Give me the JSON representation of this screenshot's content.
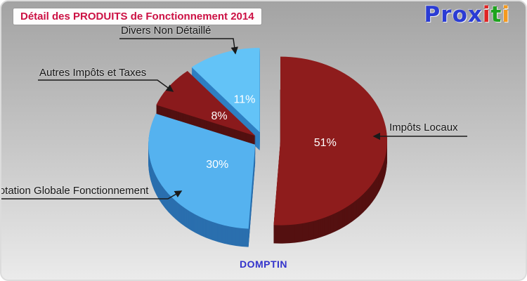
{
  "header": {
    "title": "Détail des PRODUITS de Fonctionnement 2014",
    "title_color": "#cc1144"
  },
  "logo": {
    "text": "Proxiti",
    "letters": [
      {
        "ch": "P",
        "color": "#2a3cd4"
      },
      {
        "ch": "r",
        "color": "#2a3cd4"
      },
      {
        "ch": "o",
        "color": "#2a3cd4"
      },
      {
        "ch": "x",
        "color": "#2a3cd4"
      },
      {
        "ch": "i",
        "color": "#e02424"
      },
      {
        "ch": "t",
        "color": "#1ea31e"
      },
      {
        "ch": "i",
        "color": "#f59a1e"
      }
    ]
  },
  "chart_data": {
    "type": "pie",
    "style": "3d-exploded",
    "title": "Détail des PRODUITS de Fonctionnement 2014",
    "subtitle": "DOMPTIN",
    "unit": "percent",
    "start_angle_deg": 0,
    "direction": "clockwise",
    "legend_position": "callouts",
    "slices": [
      {
        "label": "Impôts Locaux",
        "value_pct": 51,
        "color": "#8e1c1c",
        "side_color": "#541010",
        "label_color": "#ffffff"
      },
      {
        "label": "Dotation Globale Fonctionnement",
        "value_pct": 30,
        "color": "#55b2ef",
        "side_color": "#2a6fae",
        "label_color": "#ffffff"
      },
      {
        "label": "Autres Impôts et Taxes",
        "value_pct": 8,
        "color": "#8a1a1c",
        "side_color": "#521010",
        "label_color": "#ffffff"
      },
      {
        "label": "Divers Non Détaillé",
        "value_pct": 11,
        "color": "#63c3f7",
        "side_color": "#2e7fc2",
        "label_color": "#ffffff"
      }
    ]
  }
}
